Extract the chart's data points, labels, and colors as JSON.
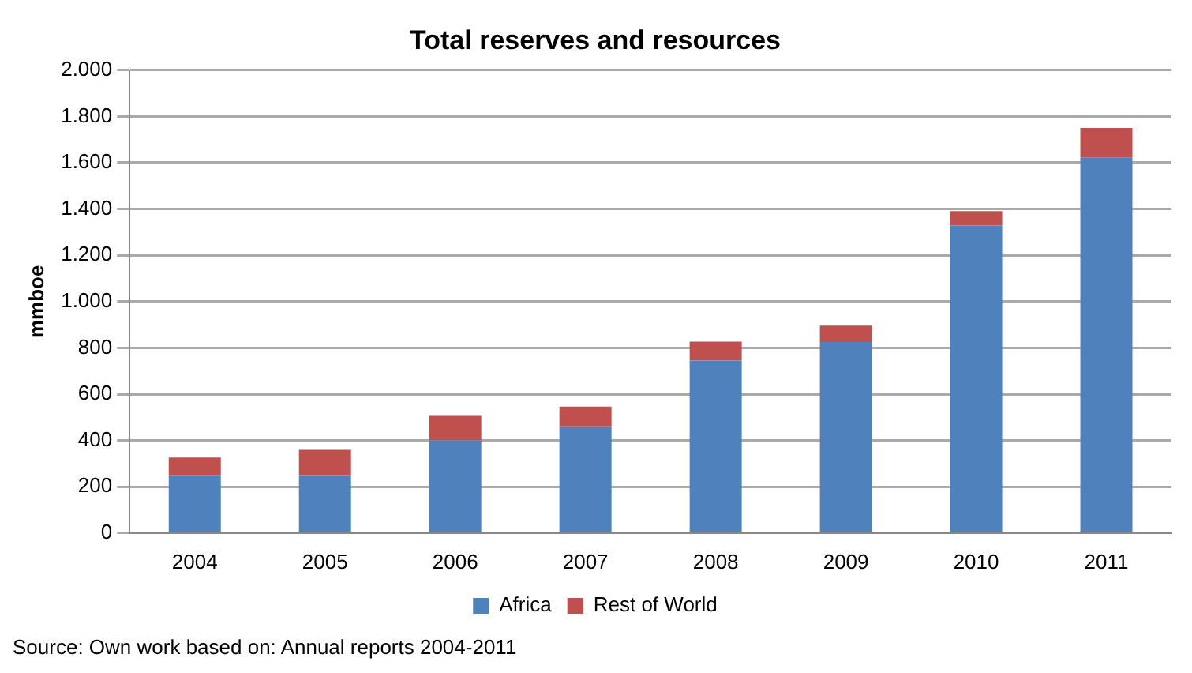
{
  "chart_data": {
    "type": "bar",
    "title": "Total reserves and resources",
    "ylabel": "mmboe",
    "categories": [
      "2004",
      "2005",
      "2006",
      "2007",
      "2008",
      "2009",
      "2010",
      "2011"
    ],
    "series": [
      {
        "name": "Africa",
        "color": "#4f81bd",
        "values": [
          249,
          250,
          400,
          461,
          745,
          825,
          1329,
          1621
        ]
      },
      {
        "name": "Rest of World",
        "color": "#c0504d",
        "values": [
          77,
          109,
          106,
          85,
          82,
          71,
          62,
          129
        ]
      }
    ],
    "stacked": true,
    "ylim": [
      0,
      2000
    ],
    "yticks": [
      0,
      200,
      400,
      600,
      800,
      {
        "value": 1000,
        "label": "1.000"
      },
      {
        "value": 1200,
        "label": "1.200"
      },
      {
        "value": 1400,
        "label": "1.400"
      },
      {
        "value": 1600,
        "label": "1.600"
      },
      {
        "value": 1800,
        "label": "1.800"
      },
      {
        "value": 2000,
        "label": "2.000"
      }
    ],
    "grid": "y",
    "legend": "bottom",
    "annotations": [
      "Source:  Own work based on: Annual reports  2004-2011"
    ]
  }
}
